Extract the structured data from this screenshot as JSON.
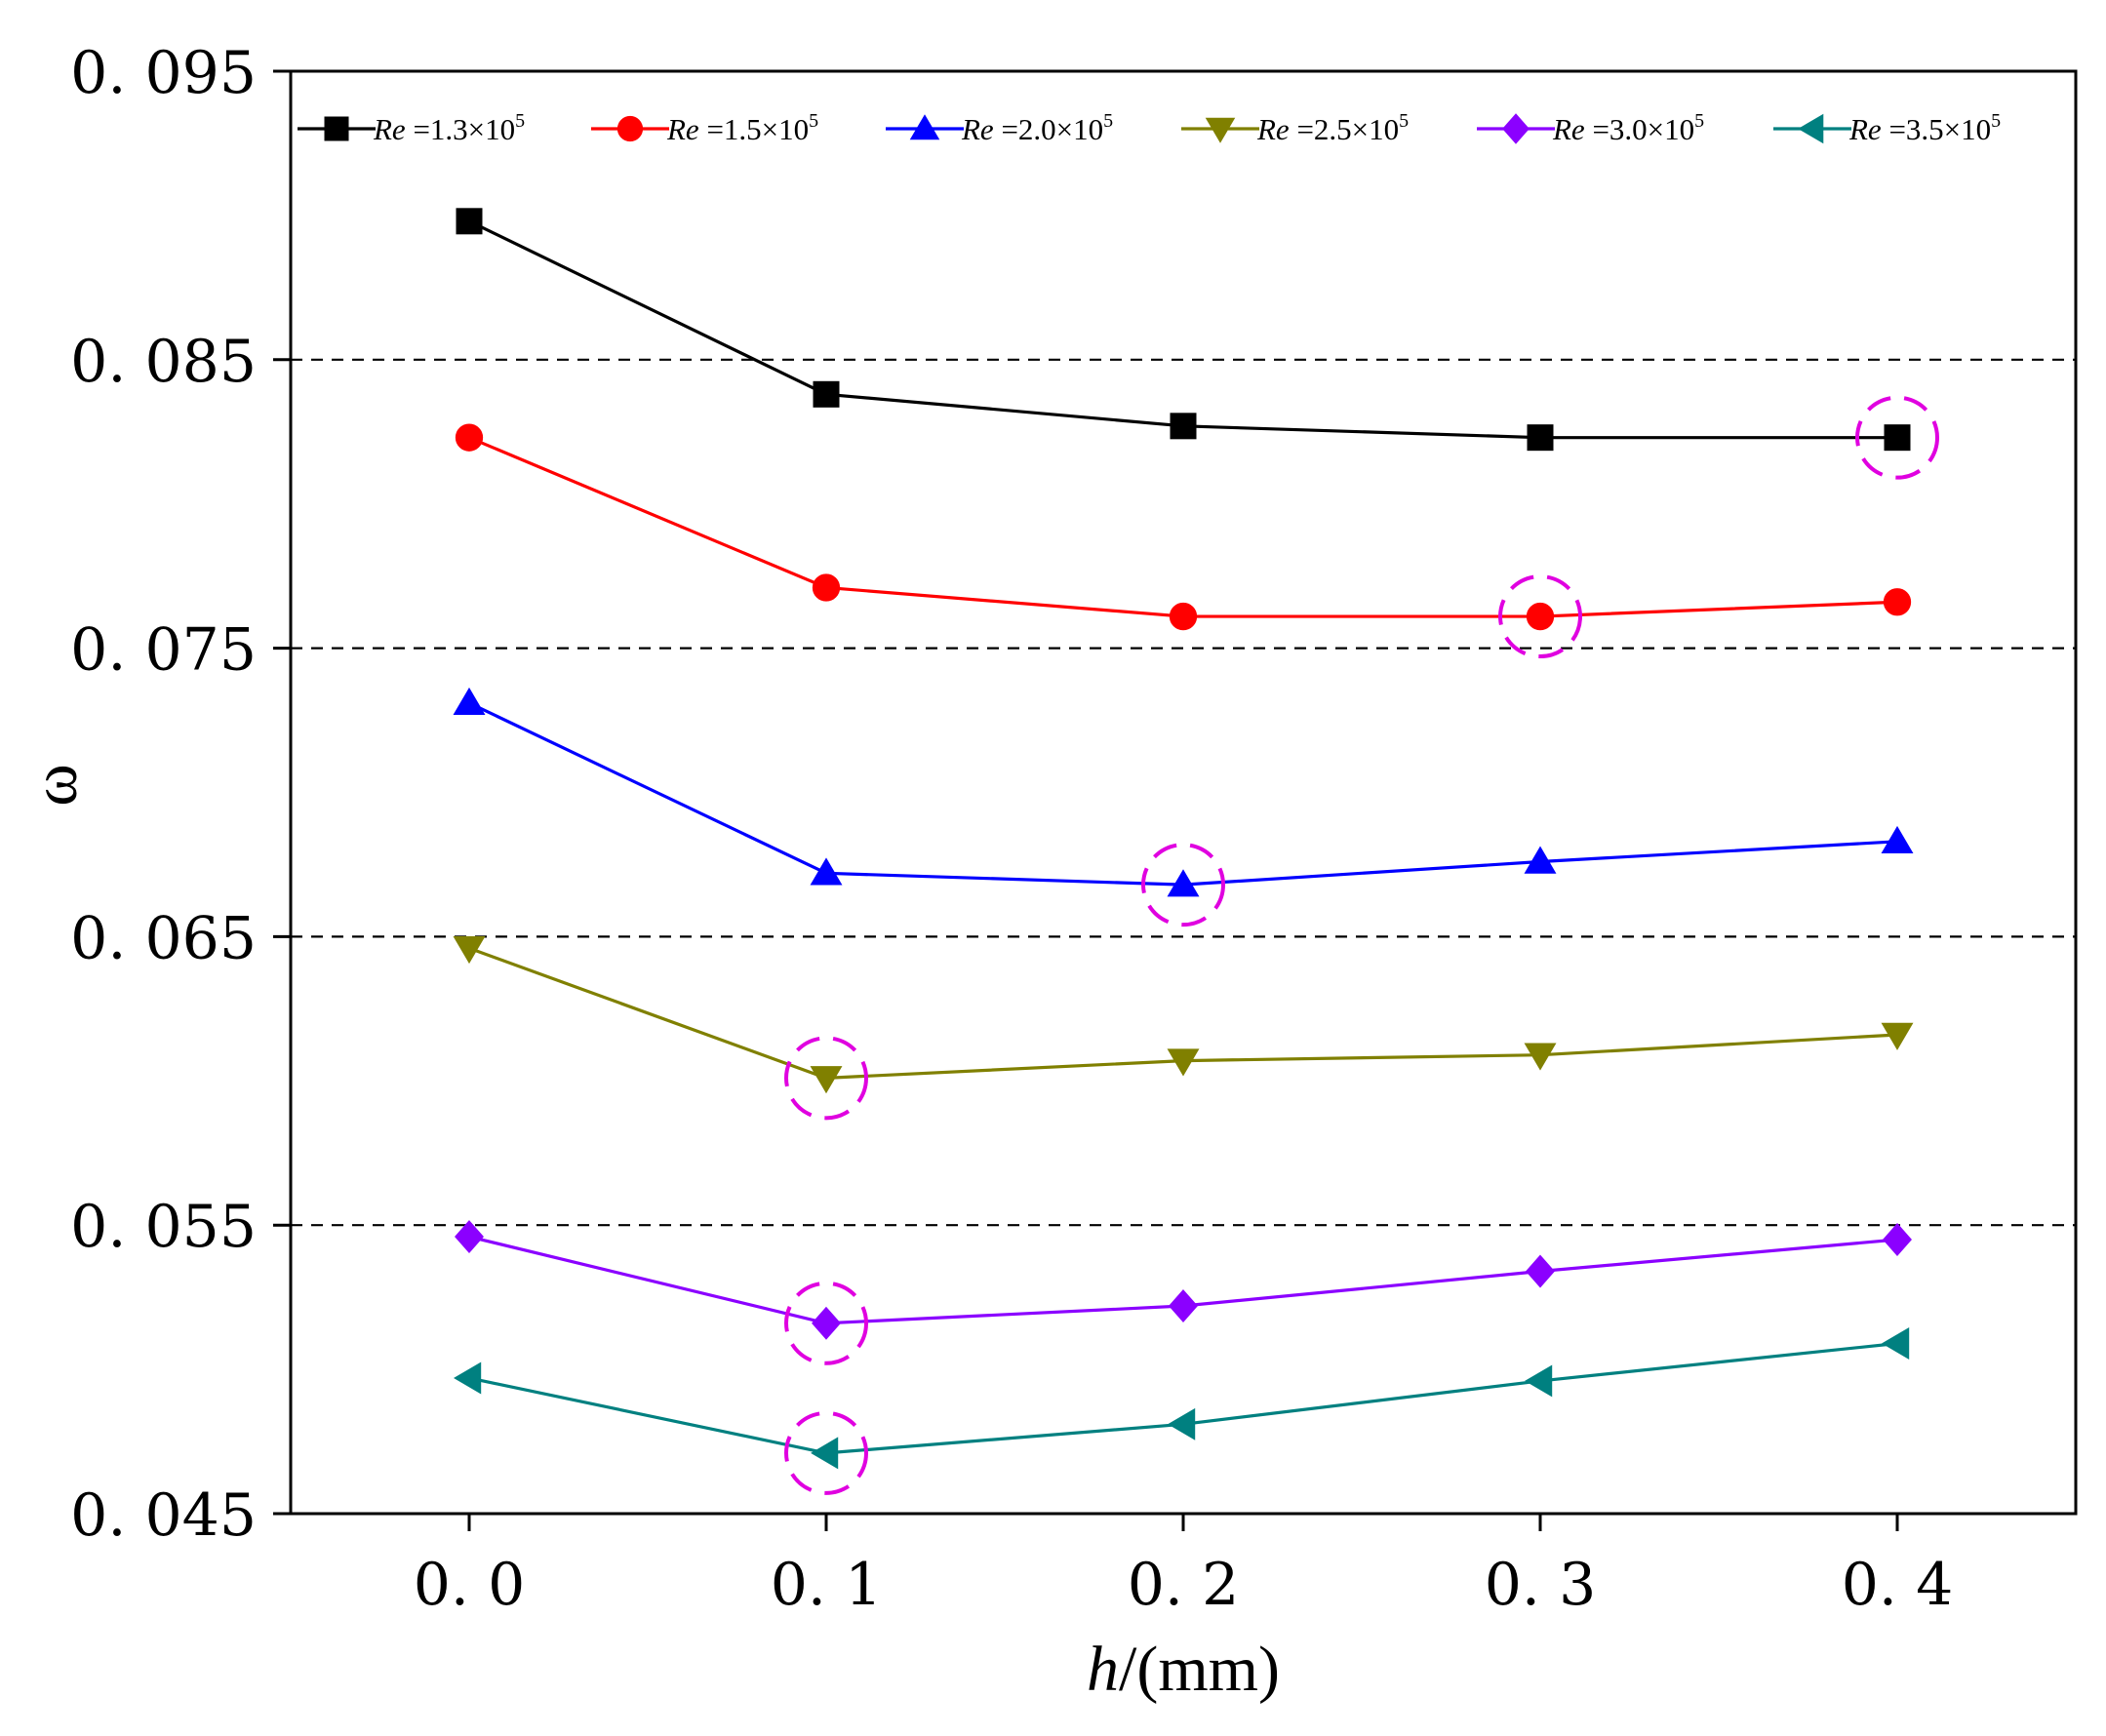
{
  "chart_data": {
    "type": "line",
    "title": "",
    "xlabel_italic": "h",
    "xlabel_rest": "/(mm)",
    "ylabel": "ω",
    "x": [
      0.0,
      0.1,
      0.2,
      0.3,
      0.4
    ],
    "xlim": [
      -0.05,
      0.45
    ],
    "ylim": [
      0.045,
      0.095
    ],
    "xticks": [
      0.0,
      0.1,
      0.2,
      0.3,
      0.4
    ],
    "xtick_labels": [
      "0. 0",
      "0. 1",
      "0. 2",
      "0. 3",
      "0. 4"
    ],
    "yticks": [
      0.045,
      0.055,
      0.065,
      0.075,
      0.085,
      0.095
    ],
    "ytick_labels": [
      "0. 045",
      "0. 055",
      "0. 065",
      "0. 075",
      "0. 085",
      "0. 095"
    ],
    "grid_lines_y": [
      0.055,
      0.065,
      0.075,
      0.085
    ],
    "legend_position": "top",
    "series": [
      {
        "name": "Re =1.3×10⁵",
        "name_italic": "Re",
        "name_rest": " =1.3×10",
        "name_exp": "5",
        "color": "#000000",
        "marker": "square",
        "values": [
          0.0898,
          0.0838,
          0.0827,
          0.0823,
          0.0823
        ],
        "highlight_index": 4
      },
      {
        "name": "Re =1.5×10⁵",
        "name_italic": "Re",
        "name_rest": " =1.5×10",
        "name_exp": "5",
        "color": "#ff0000",
        "marker": "circle",
        "values": [
          0.0823,
          0.0771,
          0.0761,
          0.0761,
          0.0766
        ],
        "highlight_index": 3
      },
      {
        "name": "Re =2.0×10⁵",
        "name_italic": "Re",
        "name_rest": " =2.0×10",
        "name_exp": "5",
        "color": "#0000ff",
        "marker": "triangle-up",
        "values": [
          0.0731,
          0.0672,
          0.0668,
          0.0676,
          0.0683
        ],
        "highlight_index": 2
      },
      {
        "name": "Re =2.5×10⁵",
        "name_italic": "Re",
        "name_rest": " =2.5×10",
        "name_exp": "5",
        "color": "#808000",
        "marker": "triangle-down",
        "values": [
          0.0646,
          0.0601,
          0.0607,
          0.0609,
          0.0616
        ],
        "highlight_index": 1
      },
      {
        "name": "Re =3.0×10⁵",
        "name_italic": "Re",
        "name_rest": " =3.0×10",
        "name_exp": "5",
        "color": "#8b00ff",
        "marker": "diamond",
        "values": [
          0.0546,
          0.0516,
          0.0522,
          0.0534,
          0.0545
        ],
        "highlight_index": 1
      },
      {
        "name": "Re =3.5×10⁵",
        "name_italic": "Re",
        "name_rest": " =3.5×10",
        "name_exp": "5",
        "color": "#008080",
        "marker": "triangle-left",
        "values": [
          0.0497,
          0.0471,
          0.0481,
          0.0496,
          0.0509
        ],
        "highlight_index": 1
      }
    ],
    "highlight_color": "#e000e0"
  }
}
